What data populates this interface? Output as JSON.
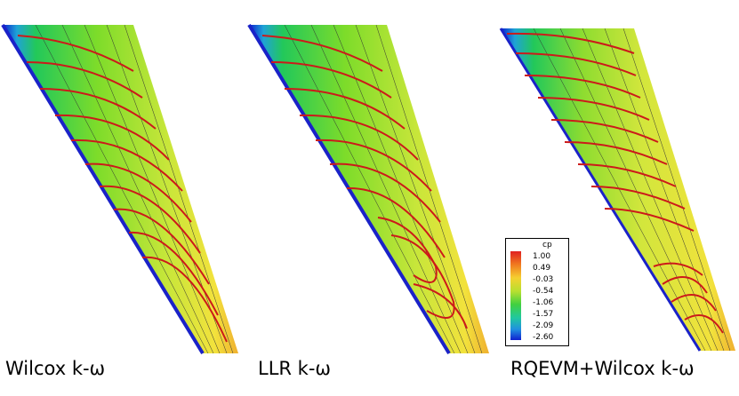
{
  "panels": [
    {
      "caption": "Wilcox k-ω"
    },
    {
      "caption": "LLR k-ω"
    },
    {
      "caption": "RQEVM+Wilcox k-ω"
    }
  ],
  "legend": {
    "title": "cp",
    "levels": [
      "1.00",
      "0.49",
      "-0.03",
      "-0.54",
      "-1.06",
      "-1.57",
      "-2.09",
      "-2.60"
    ]
  },
  "colors": {
    "streamline": "#cc1a1a",
    "leading_edge": "#1a22c8"
  }
}
